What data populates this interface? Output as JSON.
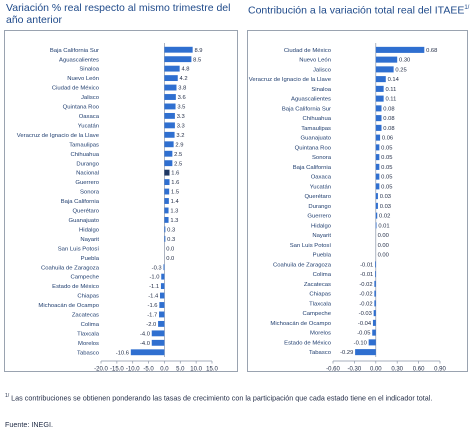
{
  "titles": {
    "left": "Variación % real respecto al mismo trimestre del año anterior",
    "right": "Contribución a la variación total real del ITAEE",
    "right_note_marker": "1/"
  },
  "footnotes": {
    "note_marker": "1/",
    "note_text": "Las contribuciones se obtienen ponderando las tasas de crecimiento con la participación que cada estado tiene en el indicador total.",
    "source": "Fuente: INEGI."
  },
  "chart_data": [
    {
      "type": "bar",
      "orientation": "horizontal",
      "title": "Variación % real respecto al mismo trimestre del año anterior",
      "categories": [
        "Baja California Sur",
        "Aguascalientes",
        "Sinaloa",
        "Nuevo León",
        "Ciudad de México",
        "Jalisco",
        "Quintana Roo",
        "Oaxaca",
        "Yucatán",
        "Veracruz de Ignacio de la Llave",
        "Tamaulipas",
        "Chihuahua",
        "Durango",
        "Nacional",
        "Guerrero",
        "Sonora",
        "Baja California",
        "Querétaro",
        "Guanajuato",
        "Hidalgo",
        "Nayarit",
        "San Luis Potosí",
        "Puebla",
        "Coahuila de Zaragoza",
        "Campeche",
        "Estado de México",
        "Chiapas",
        "Michoacán de Ocampo",
        "Zacatecas",
        "Colima",
        "Tlaxcala",
        "Morelos",
        "Tabasco"
      ],
      "values": [
        8.9,
        8.5,
        4.8,
        4.2,
        3.8,
        3.6,
        3.5,
        3.3,
        3.3,
        3.2,
        2.9,
        2.5,
        2.5,
        1.6,
        1.6,
        1.5,
        1.4,
        1.3,
        1.3,
        0.3,
        0.3,
        0.0,
        0.0,
        -0.3,
        -1.0,
        -1.1,
        -1.4,
        -1.6,
        -1.7,
        -2.0,
        -4.0,
        -4.0,
        -10.6
      ],
      "value_labels": [
        "8.9",
        "8.5",
        "4.8",
        "4.2",
        "3.8",
        "3.6",
        "3.5",
        "3.3",
        "3.3",
        "3.2",
        "2.9",
        "2.5",
        "2.5",
        "1.6",
        "1.6",
        "1.5",
        "1.4",
        "1.3",
        "1.3",
        "0.3",
        "0.3",
        "0.0",
        "0.0",
        "-0.3",
        "-1.0",
        "-1.1",
        "-1.4",
        "-1.6",
        "-1.7",
        "-2.0",
        "-4.0",
        "-4.0",
        "-10.6"
      ],
      "highlight": "Nacional",
      "xlim": [
        -20,
        15
      ],
      "xticks": [
        -20,
        -15,
        -10,
        -5,
        0,
        5,
        10,
        15
      ],
      "xtick_labels": [
        "-20.0",
        "-15.0",
        "-10.0",
        "-5.0",
        "0.0",
        "5.0",
        "10.0",
        "15.0"
      ],
      "colors": {
        "bar": "#2f6fd0",
        "bar_highlight": "#1f3864"
      }
    },
    {
      "type": "bar",
      "orientation": "horizontal",
      "title": "Contribución a la variación total real del ITAEE",
      "categories": [
        "Ciudad de México",
        "Nuevo León",
        "Jalisco",
        "Veracruz de Ignacio de la Llave",
        "Sinaloa",
        "Aguascalientes",
        "Baja California Sur",
        "Chihuahua",
        "Tamaulipas",
        "Guanajuato",
        "Quintana Roo",
        "Sonora",
        "Baja California",
        "Oaxaca",
        "Yucatán",
        "Querétaro",
        "Durango",
        "Guerrero",
        "Hidalgo",
        "Nayarit",
        "San Luis Potosí",
        "Puebla",
        "Coahuila de Zaragoza",
        "Colima",
        "Zacatecas",
        "Chiapas",
        "Tlaxcala",
        "Campeche",
        "Michoacán de Ocampo",
        "Morelos",
        "Estado de México",
        "Tabasco"
      ],
      "values": [
        0.68,
        0.3,
        0.25,
        0.14,
        0.11,
        0.11,
        0.08,
        0.08,
        0.08,
        0.06,
        0.05,
        0.05,
        0.05,
        0.05,
        0.05,
        0.03,
        0.03,
        0.02,
        0.01,
        0.0,
        0.0,
        0.0,
        -0.01,
        -0.01,
        -0.02,
        -0.02,
        -0.02,
        -0.03,
        -0.04,
        -0.05,
        -0.1,
        -0.29
      ],
      "value_labels": [
        "0.68",
        "0.30",
        "0.25",
        "0.14",
        "0.11",
        "0.11",
        "0.08",
        "0.08",
        "0.08",
        "0.06",
        "0.05",
        "0.05",
        "0.05",
        "0.05",
        "0.05",
        "0.03",
        "0.03",
        "0.02",
        "0.01",
        "0.00",
        "0.00",
        "0.00",
        "-0.01",
        "-0.01",
        "-0.02",
        "-0.02",
        "-0.02",
        "-0.03",
        "-0.04",
        "-0.05",
        "-0.10",
        "-0.29"
      ],
      "xlim": [
        -0.6,
        0.9
      ],
      "xticks": [
        -0.6,
        -0.3,
        0,
        0.3,
        0.6,
        0.9
      ],
      "xtick_labels": [
        "-0.60",
        "-0.30",
        "0.00",
        "0.30",
        "0.60",
        "0.90"
      ],
      "colors": {
        "bar": "#2f6fd0"
      }
    }
  ]
}
